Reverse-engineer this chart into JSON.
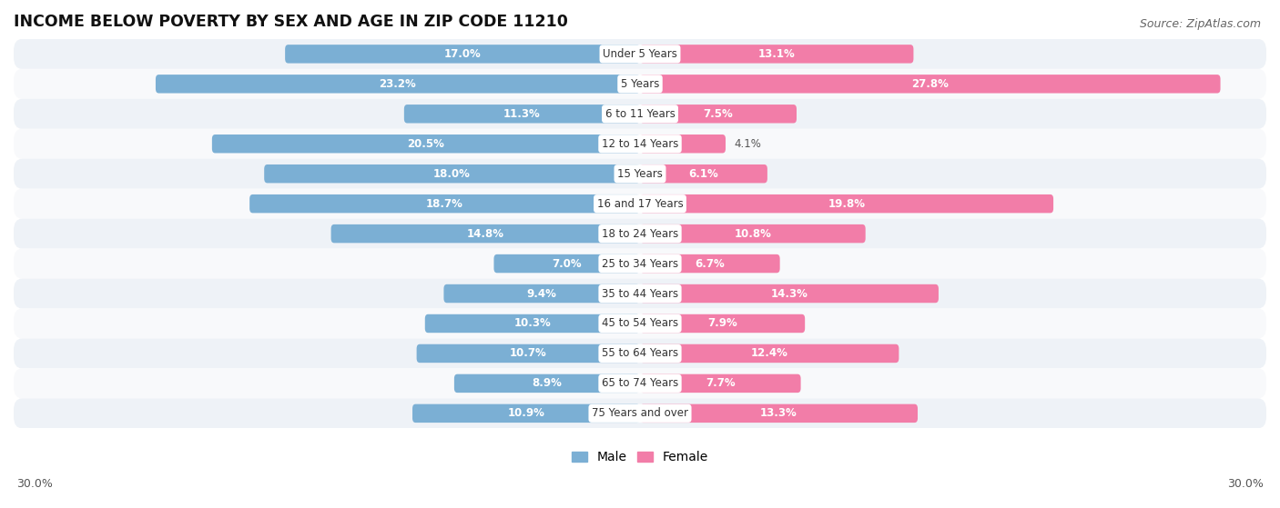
{
  "title": "INCOME BELOW POVERTY BY SEX AND AGE IN ZIP CODE 11210",
  "source": "Source: ZipAtlas.com",
  "categories": [
    "Under 5 Years",
    "5 Years",
    "6 to 11 Years",
    "12 to 14 Years",
    "15 Years",
    "16 and 17 Years",
    "18 to 24 Years",
    "25 to 34 Years",
    "35 to 44 Years",
    "45 to 54 Years",
    "55 to 64 Years",
    "65 to 74 Years",
    "75 Years and over"
  ],
  "male_values": [
    17.0,
    23.2,
    11.3,
    20.5,
    18.0,
    18.7,
    14.8,
    7.0,
    9.4,
    10.3,
    10.7,
    8.9,
    10.9
  ],
  "female_values": [
    13.1,
    27.8,
    7.5,
    4.1,
    6.1,
    19.8,
    10.8,
    6.7,
    14.3,
    7.9,
    12.4,
    7.7,
    13.3
  ],
  "male_color": "#7bafd4",
  "female_color": "#f27da8",
  "row_colors": [
    "#eef2f7",
    "#f8f9fb"
  ],
  "xlim": 30.0,
  "bar_height": 0.62,
  "inside_threshold": 6.0,
  "label_inside_color": "#ffffff",
  "label_outside_color": "#555555",
  "category_color": "#333333",
  "title_fontsize": 12.5,
  "source_fontsize": 9,
  "label_fontsize": 8.5,
  "category_fontsize": 8.5,
  "legend_fontsize": 10,
  "axis_label_fontsize": 9
}
